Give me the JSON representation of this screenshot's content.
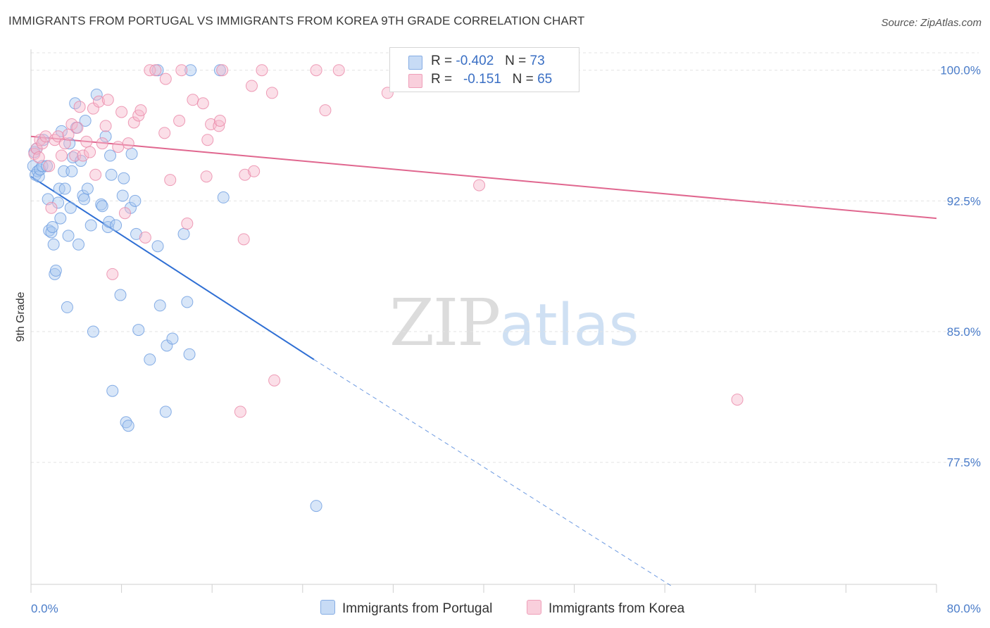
{
  "title": "IMMIGRANTS FROM PORTUGAL VS IMMIGRANTS FROM KOREA 9TH GRADE CORRELATION CHART",
  "source": "Source: ZipAtlas.com",
  "watermark": {
    "zip": "ZIP",
    "atlas": "atlas"
  },
  "legend": {
    "portugal": {
      "r_label": "R =",
      "r_value": "-0.402",
      "n_label": "N =",
      "n_value": "73",
      "color": "#a9c7ef"
    },
    "korea": {
      "r_label": "R =",
      "r_value": "-0.151",
      "n_label": "N =",
      "n_value": "65",
      "color": "#f6b8cc"
    }
  },
  "bottom_legend": {
    "portugal": "Immigrants from Portugal",
    "korea": "Immigrants from Korea"
  },
  "chart_data": {
    "type": "scatter",
    "title": "IMMIGRANTS FROM PORTUGAL VS IMMIGRANTS FROM KOREA 9TH GRADE CORRELATION CHART",
    "xlabel": "",
    "ylabel": "9th Grade",
    "xlim": [
      0,
      80
    ],
    "ylim": [
      70.5,
      101.2
    ],
    "x_tick_labels": [
      "0.0%",
      "80.0%"
    ],
    "y_ticks": [
      77.5,
      85.0,
      92.5,
      100.0
    ],
    "y_tick_labels": [
      "77.5%",
      "85.0%",
      "92.5%",
      "100.0%"
    ],
    "grid": true,
    "series": [
      {
        "name": "Immigrants from Portugal",
        "color": "#6a9be0",
        "fill": "#a9c7ef",
        "points": [
          [
            0.2,
            94.5
          ],
          [
            0.3,
            95.3
          ],
          [
            0.4,
            94.0
          ],
          [
            0.5,
            95.5
          ],
          [
            0.6,
            94.2
          ],
          [
            0.7,
            93.9
          ],
          [
            0.8,
            94.3
          ],
          [
            1.0,
            94.5
          ],
          [
            1.1,
            96.0
          ],
          [
            1.4,
            94.5
          ],
          [
            1.5,
            92.6
          ],
          [
            1.6,
            90.8
          ],
          [
            1.8,
            90.7
          ],
          [
            1.9,
            91.0
          ],
          [
            2.0,
            90.0
          ],
          [
            2.1,
            88.3
          ],
          [
            2.2,
            88.5
          ],
          [
            2.4,
            92.4
          ],
          [
            2.5,
            93.2
          ],
          [
            2.6,
            91.5
          ],
          [
            2.7,
            96.5
          ],
          [
            2.9,
            94.2
          ],
          [
            3.0,
            93.2
          ],
          [
            3.2,
            86.4
          ],
          [
            3.3,
            90.5
          ],
          [
            3.4,
            95.8
          ],
          [
            3.5,
            92.1
          ],
          [
            3.6,
            94.2
          ],
          [
            3.7,
            95.0
          ],
          [
            3.9,
            98.1
          ],
          [
            4.0,
            96.7
          ],
          [
            4.2,
            90.0
          ],
          [
            4.4,
            94.8
          ],
          [
            4.6,
            92.8
          ],
          [
            4.7,
            92.6
          ],
          [
            4.8,
            97.1
          ],
          [
            5.0,
            93.2
          ],
          [
            5.3,
            91.1
          ],
          [
            5.5,
            85.0
          ],
          [
            5.8,
            98.6
          ],
          [
            6.2,
            92.3
          ],
          [
            6.3,
            92.2
          ],
          [
            6.6,
            96.2
          ],
          [
            6.8,
            91.0
          ],
          [
            6.9,
            91.3
          ],
          [
            7.0,
            95.1
          ],
          [
            7.1,
            94.0
          ],
          [
            7.2,
            81.6
          ],
          [
            7.5,
            91.1
          ],
          [
            7.9,
            87.1
          ],
          [
            8.1,
            92.8
          ],
          [
            8.2,
            93.8
          ],
          [
            8.4,
            79.8
          ],
          [
            8.6,
            79.6
          ],
          [
            8.8,
            92.1
          ],
          [
            8.9,
            95.2
          ],
          [
            9.2,
            92.5
          ],
          [
            9.3,
            90.6
          ],
          [
            9.5,
            85.1
          ],
          [
            10.5,
            83.4
          ],
          [
            11.2,
            89.9
          ],
          [
            11.4,
            86.5
          ],
          [
            11.9,
            80.4
          ],
          [
            12.0,
            84.2
          ],
          [
            12.5,
            84.6
          ],
          [
            13.5,
            90.6
          ],
          [
            13.8,
            86.7
          ],
          [
            14.0,
            83.7
          ],
          [
            14.1,
            100.0
          ],
          [
            16.7,
            100.0
          ],
          [
            17.0,
            92.7
          ],
          [
            25.2,
            75.0
          ],
          [
            11.2,
            100.0
          ]
        ]
      },
      {
        "name": "Immigrants from Korea",
        "color": "#ea86a6",
        "fill": "#f6b8cc",
        "points": [
          [
            0.3,
            95.2
          ],
          [
            0.5,
            95.5
          ],
          [
            0.7,
            95.0
          ],
          [
            0.8,
            96.0
          ],
          [
            1.0,
            95.8
          ],
          [
            1.3,
            96.2
          ],
          [
            1.6,
            94.5
          ],
          [
            1.8,
            92.1
          ],
          [
            2.1,
            96.0
          ],
          [
            2.4,
            96.2
          ],
          [
            2.7,
            95.1
          ],
          [
            3.0,
            95.8
          ],
          [
            3.3,
            96.3
          ],
          [
            3.6,
            96.9
          ],
          [
            3.9,
            95.1
          ],
          [
            4.1,
            96.7
          ],
          [
            4.3,
            97.9
          ],
          [
            4.6,
            95.1
          ],
          [
            4.9,
            95.9
          ],
          [
            5.2,
            95.3
          ],
          [
            5.5,
            97.8
          ],
          [
            5.7,
            94.0
          ],
          [
            6.0,
            98.2
          ],
          [
            6.3,
            95.8
          ],
          [
            6.6,
            96.8
          ],
          [
            6.8,
            98.3
          ],
          [
            7.2,
            88.3
          ],
          [
            7.7,
            95.6
          ],
          [
            8.0,
            97.6
          ],
          [
            8.3,
            91.8
          ],
          [
            8.6,
            95.8
          ],
          [
            9.1,
            97.0
          ],
          [
            9.5,
            97.4
          ],
          [
            9.7,
            97.7
          ],
          [
            10.1,
            90.4
          ],
          [
            10.5,
            100.0
          ],
          [
            11.0,
            100.0
          ],
          [
            11.8,
            96.4
          ],
          [
            11.9,
            99.5
          ],
          [
            12.3,
            93.7
          ],
          [
            13.1,
            97.1
          ],
          [
            13.3,
            100.0
          ],
          [
            13.8,
            91.2
          ],
          [
            14.3,
            98.3
          ],
          [
            15.2,
            98.1
          ],
          [
            15.5,
            93.9
          ],
          [
            15.6,
            96.0
          ],
          [
            15.9,
            96.9
          ],
          [
            16.6,
            96.8
          ],
          [
            16.7,
            97.1
          ],
          [
            16.9,
            100.0
          ],
          [
            18.5,
            80.4
          ],
          [
            18.8,
            90.3
          ],
          [
            18.9,
            94.0
          ],
          [
            19.5,
            99.1
          ],
          [
            19.7,
            94.2
          ],
          [
            20.4,
            100.0
          ],
          [
            21.3,
            98.7
          ],
          [
            21.5,
            82.2
          ],
          [
            25.2,
            100.0
          ],
          [
            26.0,
            97.7
          ],
          [
            27.2,
            100.0
          ],
          [
            31.5,
            98.7
          ],
          [
            39.6,
            93.4
          ],
          [
            62.4,
            81.1
          ]
        ]
      }
    ],
    "trendlines": [
      {
        "series": "Immigrants from Portugal",
        "solid": [
          [
            0,
            93.9
          ],
          [
            25.0,
            83.4
          ]
        ],
        "dashed": [
          [
            25.0,
            83.4
          ],
          [
            56.6,
            70.4
          ]
        ],
        "color": "#2f6fd4"
      },
      {
        "series": "Immigrants from Korea",
        "solid": [
          [
            0,
            96.2
          ],
          [
            80,
            91.5
          ]
        ],
        "color": "#e0678f"
      }
    ]
  }
}
